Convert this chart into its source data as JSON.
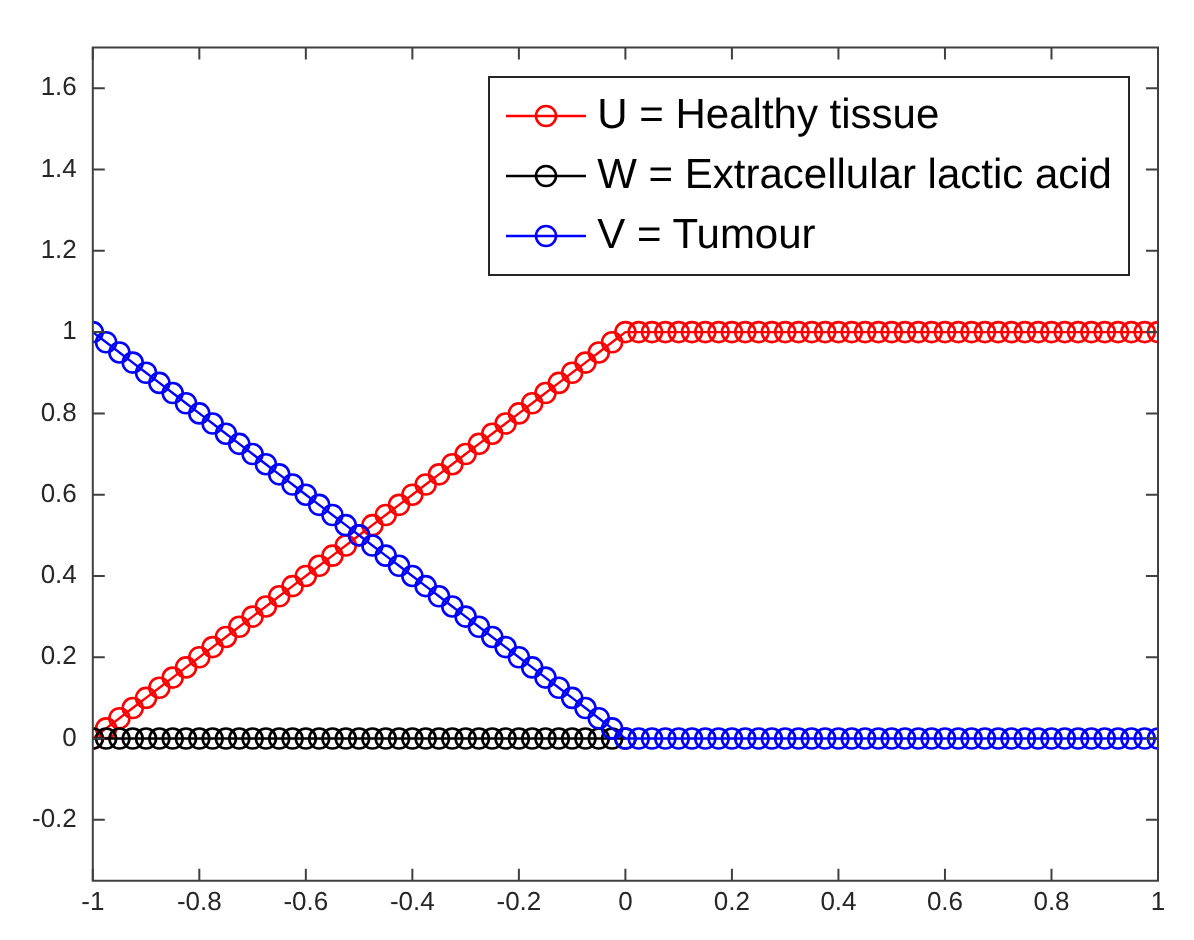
{
  "chart_data": {
    "type": "line",
    "marker": "circle",
    "line_style": "solid",
    "legend": "top right",
    "x": [
      -1,
      -0.975,
      -0.95,
      -0.925,
      -0.9,
      -0.875,
      -0.85,
      -0.825,
      -0.8,
      -0.775,
      -0.75,
      -0.725,
      -0.7,
      -0.675,
      -0.65,
      -0.625,
      -0.6,
      -0.575,
      -0.55,
      -0.525,
      -0.5,
      -0.475,
      -0.45,
      -0.425,
      -0.4,
      -0.375,
      -0.35,
      -0.325,
      -0.3,
      -0.275,
      -0.25,
      -0.225,
      -0.2,
      -0.175,
      -0.15,
      -0.125,
      -0.1,
      -0.075,
      -0.05,
      -0.025,
      0,
      0.025,
      0.05,
      0.075,
      0.1,
      0.125,
      0.15,
      0.175,
      0.2,
      0.225,
      0.25,
      0.275,
      0.3,
      0.325,
      0.35,
      0.375,
      0.4,
      0.425,
      0.45,
      0.475,
      0.5,
      0.525,
      0.55,
      0.575,
      0.6,
      0.625,
      0.65,
      0.675,
      0.7,
      0.725,
      0.75,
      0.775,
      0.8,
      0.825,
      0.85,
      0.875,
      0.9,
      0.925,
      0.95,
      0.975,
      1
    ],
    "series": [
      {
        "name": "U = Healthy tissue",
        "color": "#ff0000",
        "values": [
          0,
          0.025,
          0.05,
          0.075,
          0.1,
          0.125,
          0.15,
          0.175,
          0.2,
          0.225,
          0.25,
          0.275,
          0.3,
          0.325,
          0.35,
          0.375,
          0.4,
          0.425,
          0.45,
          0.475,
          0.5,
          0.525,
          0.55,
          0.575,
          0.6,
          0.625,
          0.65,
          0.675,
          0.7,
          0.725,
          0.75,
          0.775,
          0.8,
          0.825,
          0.85,
          0.875,
          0.9,
          0.925,
          0.95,
          0.975,
          1,
          1,
          1,
          1,
          1,
          1,
          1,
          1,
          1,
          1,
          1,
          1,
          1,
          1,
          1,
          1,
          1,
          1,
          1,
          1,
          1,
          1,
          1,
          1,
          1,
          1,
          1,
          1,
          1,
          1,
          1,
          1,
          1,
          1,
          1,
          1,
          1,
          1,
          1,
          1,
          1
        ]
      },
      {
        "name": "W = Extracellular lactic acid",
        "color": "#000000",
        "values": [
          0,
          0,
          0,
          0,
          0,
          0,
          0,
          0,
          0,
          0,
          0,
          0,
          0,
          0,
          0,
          0,
          0,
          0,
          0,
          0,
          0,
          0,
          0,
          0,
          0,
          0,
          0,
          0,
          0,
          0,
          0,
          0,
          0,
          0,
          0,
          0,
          0,
          0,
          0,
          0,
          0,
          null,
          null,
          null,
          null,
          null,
          null,
          null,
          null,
          null,
          null,
          null,
          null,
          null,
          null,
          null,
          null,
          null,
          null,
          null,
          null,
          null,
          null,
          null,
          null,
          null,
          null,
          null,
          null,
          null,
          null,
          null,
          null,
          null,
          null,
          null,
          null,
          null,
          null,
          null,
          null
        ]
      },
      {
        "name": "V = Tumour",
        "color": "#0000ff",
        "values": [
          1,
          0.975,
          0.95,
          0.925,
          0.9,
          0.875,
          0.85,
          0.825,
          0.8,
          0.775,
          0.75,
          0.725,
          0.7,
          0.675,
          0.65,
          0.625,
          0.6,
          0.575,
          0.55,
          0.525,
          0.5,
          0.475,
          0.45,
          0.425,
          0.4,
          0.375,
          0.35,
          0.325,
          0.3,
          0.275,
          0.25,
          0.225,
          0.2,
          0.175,
          0.15,
          0.125,
          0.1,
          0.075,
          0.05,
          0.025,
          0,
          0,
          0,
          0,
          0,
          0,
          0,
          0,
          0,
          0,
          0,
          0,
          0,
          0,
          0,
          0,
          0,
          0,
          0,
          0,
          0,
          0,
          0,
          0,
          0,
          0,
          0,
          0,
          0,
          0,
          0,
          0,
          0,
          0,
          0,
          0,
          0,
          0,
          0,
          0,
          0
        ]
      }
    ],
    "xlim": [
      -1,
      1
    ],
    "xticks": [
      -1,
      -0.8,
      -0.6,
      -0.4,
      -0.2,
      0,
      0.2,
      0.4,
      0.6,
      0.8,
      1
    ],
    "ylim": [
      -0.35,
      1.7
    ],
    "yticks": [
      -0.2,
      0,
      0.2,
      0.4,
      0.6,
      0.8,
      1,
      1.2,
      1.4,
      1.6
    ]
  }
}
